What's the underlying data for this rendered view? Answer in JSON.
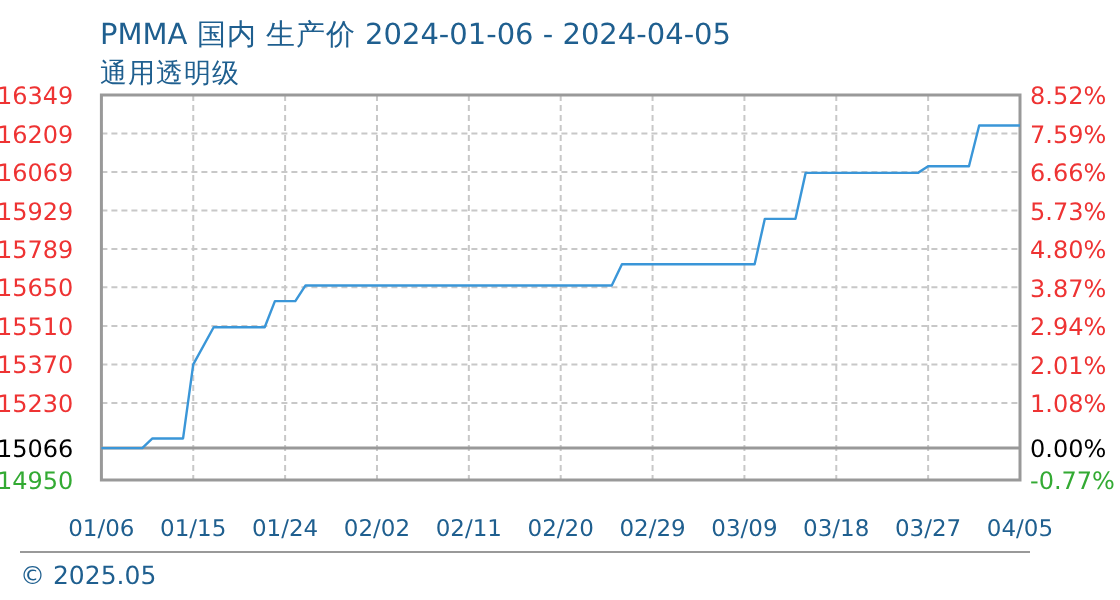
{
  "chart_data": {
    "type": "line",
    "title": "PMMA 国内 生产价 2024-01-06 - 2024-04-05",
    "subtitle": "通用透明级",
    "x": [
      "2024-01-06",
      "2024-01-10",
      "2024-01-11",
      "2024-01-14",
      "2024-01-15",
      "2024-01-17",
      "2024-01-22",
      "2024-01-23",
      "2024-01-25",
      "2024-01-26",
      "2024-02-25",
      "2024-02-26",
      "2024-03-10",
      "2024-03-11",
      "2024-03-14",
      "2024-03-15",
      "2024-03-26",
      "2024-03-27",
      "2024-03-31",
      "2024-04-01",
      "2024-04-05"
    ],
    "series": [
      {
        "color": "#3a96d8",
        "values": [
          15066,
          15066,
          15101,
          15101,
          15370,
          15505,
          15505,
          15600,
          15600,
          15657,
          15657,
          15734,
          15734,
          15899,
          15899,
          16066,
          16066,
          16090,
          16090,
          16238,
          16238
        ]
      }
    ],
    "xlim": [
      "2024-01-06",
      "2024-04-05"
    ],
    "xticks": [
      {
        "value": "2024-01-06",
        "label": "01/06"
      },
      {
        "value": "2024-01-15",
        "label": "01/15"
      },
      {
        "value": "2024-01-24",
        "label": "01/24"
      },
      {
        "value": "2024-02-02",
        "label": "02/02"
      },
      {
        "value": "2024-02-11",
        "label": "02/11"
      },
      {
        "value": "2024-02-20",
        "label": "02/20"
      },
      {
        "value": "2024-02-29",
        "label": "02/29"
      },
      {
        "value": "2024-03-09",
        "label": "03/09"
      },
      {
        "value": "2024-03-18",
        "label": "03/18"
      },
      {
        "value": "2024-03-27",
        "label": "03/27"
      },
      {
        "value": "2024-04-05",
        "label": "04/05"
      }
    ],
    "ylim": [
      14950,
      16349
    ],
    "yticks": [
      16349,
      16209,
      16069,
      15929,
      15789,
      15650,
      15510,
      15370,
      15230,
      15066,
      14950
    ],
    "y2lim": [
      -0.77,
      8.52
    ],
    "y2ticks": [
      {
        "value": 8.52,
        "label": "8.52%"
      },
      {
        "value": 7.59,
        "label": "7.59%"
      },
      {
        "value": 6.66,
        "label": "6.66%"
      },
      {
        "value": 5.73,
        "label": "5.73%"
      },
      {
        "value": 4.8,
        "label": "4.80%"
      },
      {
        "value": 3.87,
        "label": "3.87%"
      },
      {
        "value": 2.94,
        "label": "2.94%"
      },
      {
        "value": 2.01,
        "label": "2.01%"
      },
      {
        "value": 1.08,
        "label": "1.08%"
      },
      {
        "value": 0,
        "label": "0.00%"
      },
      {
        "value": -0.77,
        "label": "-0.77%"
      }
    ],
    "ref_lines": [
      {
        "axis": "y",
        "value": 15066,
        "color": "#999999",
        "line_style": "solid"
      }
    ],
    "grid": true,
    "marker": "none",
    "line_style": "solid",
    "annotations": [
      "© 2025.05"
    ]
  }
}
